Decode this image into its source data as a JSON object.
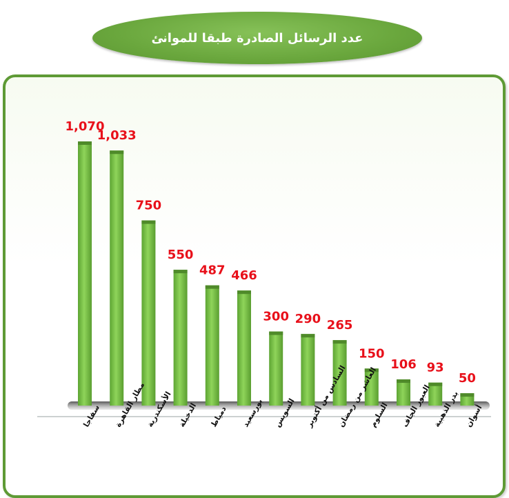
{
  "colors": {
    "accent": "#6aa73d",
    "bar": "#7cc24a",
    "bar_top": "#4f8a2a",
    "value_label": "#e8101a"
  },
  "chart_data": {
    "type": "bar",
    "title": "عدد الرسائل الصادرة طبقا للموانئ",
    "categories": [
      "سفاجا",
      "مطار القاهرة",
      "الأسكندرية",
      "الدخيلة",
      "دمياط",
      "بورسعيد",
      "السويس",
      "السادس من أكتوبر",
      "العاشر من رمضان",
      "السلوم",
      "العبور الجاف",
      "بدر الذهبية",
      "أسوان"
    ],
    "values": [
      1070,
      1033,
      750,
      550,
      487,
      466,
      300,
      290,
      265,
      150,
      106,
      93,
      50
    ],
    "value_labels": [
      "1,070",
      "1,033",
      "750",
      "550",
      "487",
      "466",
      "300",
      "290",
      "265",
      "150",
      "106",
      "93",
      "50"
    ],
    "ylim": [
      0,
      1070
    ],
    "grid": false,
    "legend": "none"
  }
}
